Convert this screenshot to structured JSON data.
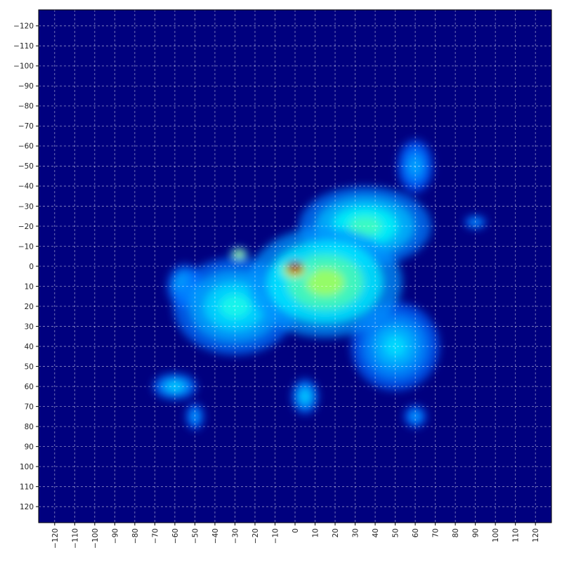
{
  "chart_data": {
    "type": "heatmap",
    "title": "",
    "xlabel": "",
    "ylabel": "",
    "xlim": [
      -128,
      128
    ],
    "ylim": [
      128,
      -128
    ],
    "y_axis_inverted": true,
    "grid": true,
    "grid_style": "dashed white",
    "colormap": "jet",
    "background_color": "#00007f",
    "xticks": [
      -120,
      -110,
      -100,
      -90,
      -80,
      -70,
      -60,
      -50,
      -40,
      -30,
      -20,
      -10,
      0,
      10,
      20,
      30,
      40,
      50,
      60,
      70,
      80,
      90,
      100,
      110,
      120
    ],
    "yticks": [
      -120,
      -110,
      -100,
      -90,
      -80,
      -70,
      -60,
      -50,
      -40,
      -30,
      -20,
      -10,
      0,
      10,
      20,
      30,
      40,
      50,
      60,
      70,
      80,
      90,
      100,
      110,
      120
    ],
    "xtick_labels": [
      "−120",
      "−110",
      "−100",
      "−90",
      "−80",
      "−70",
      "−60",
      "−50",
      "−40",
      "−30",
      "−20",
      "−10",
      "0",
      "10",
      "20",
      "30",
      "40",
      "50",
      "60",
      "70",
      "80",
      "90",
      "100",
      "110",
      "120"
    ],
    "ytick_labels": [
      "−120",
      "−110",
      "−100",
      "−90",
      "−80",
      "−70",
      "−60",
      "−50",
      "−40",
      "−30",
      "−20",
      "−10",
      "0",
      "10",
      "20",
      "30",
      "40",
      "50",
      "60",
      "70",
      "80",
      "90",
      "100",
      "110",
      "120"
    ],
    "density_peak": {
      "x": 0,
      "y": 0,
      "level": 1.0
    },
    "density_blobs": [
      {
        "x": 0,
        "y": 2,
        "sx": 8,
        "sy": 5,
        "level": 0.9
      },
      {
        "x": -28,
        "y": -6,
        "sx": 4,
        "sy": 3,
        "level": 0.7
      },
      {
        "x": 15,
        "y": 8,
        "sx": 35,
        "sy": 25,
        "level": 0.55
      },
      {
        "x": 35,
        "y": -20,
        "sx": 30,
        "sy": 18,
        "level": 0.45
      },
      {
        "x": -30,
        "y": 20,
        "sx": 28,
        "sy": 22,
        "level": 0.4
      },
      {
        "x": 50,
        "y": 40,
        "sx": 20,
        "sy": 20,
        "level": 0.35
      },
      {
        "x": -60,
        "y": 60,
        "sx": 10,
        "sy": 6,
        "level": 0.35
      },
      {
        "x": 5,
        "y": 65,
        "sx": 6,
        "sy": 8,
        "level": 0.35
      },
      {
        "x": 60,
        "y": -50,
        "sx": 8,
        "sy": 12,
        "level": 0.3
      },
      {
        "x": 90,
        "y": -22,
        "sx": 5,
        "sy": 3,
        "level": 0.3
      },
      {
        "x": -50,
        "y": 75,
        "sx": 4,
        "sy": 6,
        "level": 0.3
      },
      {
        "x": 60,
        "y": 75,
        "sx": 5,
        "sy": 5,
        "level": 0.3
      },
      {
        "x": -55,
        "y": 10,
        "sx": 8,
        "sy": 10,
        "level": 0.35
      }
    ]
  }
}
